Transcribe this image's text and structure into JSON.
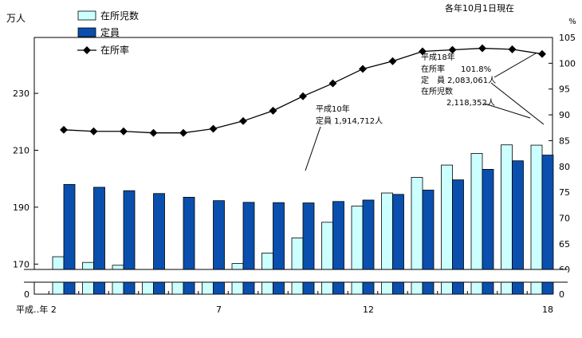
{
  "chart_data": {
    "type": "bar",
    "note": "各年10月1日現在",
    "left_unit": "万人",
    "right_unit": "%",
    "x_start_label": "平成‥年 2",
    "x": [
      2,
      3,
      4,
      5,
      6,
      7,
      8,
      9,
      10,
      11,
      12,
      13,
      14,
      15,
      16,
      17,
      18
    ],
    "x_tick_labels": [
      {
        "x": 7,
        "label": "7"
      },
      {
        "x": 12,
        "label": "12"
      },
      {
        "x": 18,
        "label": "18"
      }
    ],
    "left_ticks": [
      "170",
      "190",
      "210",
      "230"
    ],
    "left_zero": "0",
    "right_ticks": [
      "60",
      "65",
      "70",
      "75",
      "80",
      "85",
      "90",
      "95",
      "100",
      "105"
    ],
    "right_zero": "0",
    "ylim_left": [
      160,
      239
    ],
    "ylim_right": [
      59.5,
      105
    ],
    "series": [
      {
        "name": "在所児数",
        "kind": "bar",
        "color": "#ccffff",
        "values": [
          172.6,
          170.6,
          169.6,
          168.1,
          166.8,
          167.1,
          170.2,
          173.9,
          179.2,
          184.7,
          190.4,
          195.0,
          200.5,
          204.8,
          208.9,
          211.9,
          211.8
        ]
      },
      {
        "name": "定員",
        "kind": "bar",
        "color": "#0a4fae",
        "values": [
          198.0,
          197.0,
          195.8,
          194.8,
          193.5,
          192.3,
          191.7,
          191.6,
          191.5,
          192.0,
          192.5,
          194.5,
          196.0,
          199.6,
          203.3,
          206.3,
          208.3
        ]
      },
      {
        "name": "在所率",
        "kind": "line",
        "color": "#000000",
        "values": [
          87.1,
          86.8,
          86.8,
          86.5,
          86.5,
          87.3,
          88.8,
          90.8,
          93.6,
          96.1,
          98.9,
          100.4,
          102.3,
          102.6,
          102.9,
          102.7,
          101.8
        ]
      }
    ],
    "annotations": [
      {
        "key": "h10",
        "lines": [
          "平成10年",
          "定員 1,914,712人"
        ]
      },
      {
        "key": "h18",
        "lines": [
          "平成18年",
          "在所率　　101.8%",
          "定　員 2,083,061人",
          "在所児数",
          "2,118,352人"
        ]
      }
    ]
  }
}
